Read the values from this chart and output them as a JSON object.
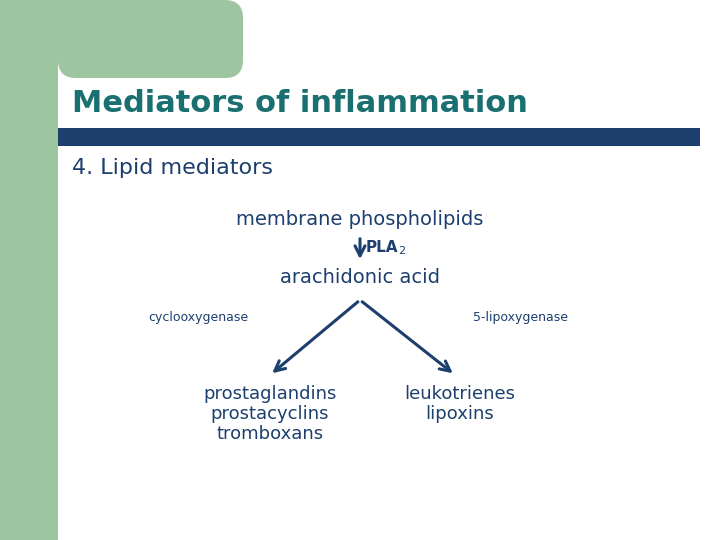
{
  "bg_color": "#ffffff",
  "green_color": "#9dc5a0",
  "title_bar_color": "#1c3f6e",
  "title_text": "Mediators of inflammation",
  "title_color": "#1a7070",
  "subtitle_text": "4. Lipid mediators",
  "content_color": "#1c3f6e",
  "arrow_color": "#1c3f6e",
  "node_membrane": "membrane phospholipids",
  "node_arachidonic": "arachidonic acid",
  "label_left": "cyclooxygenase",
  "label_right": "5-lipoxygenase",
  "products_left_1": "prostaglandins",
  "products_left_2": "prostacyclins",
  "products_left_3": "tromboxans",
  "products_right_1": "leukotrienes",
  "products_right_2": "lipoxins",
  "fig_width": 7.2,
  "fig_height": 5.4,
  "dpi": 100
}
